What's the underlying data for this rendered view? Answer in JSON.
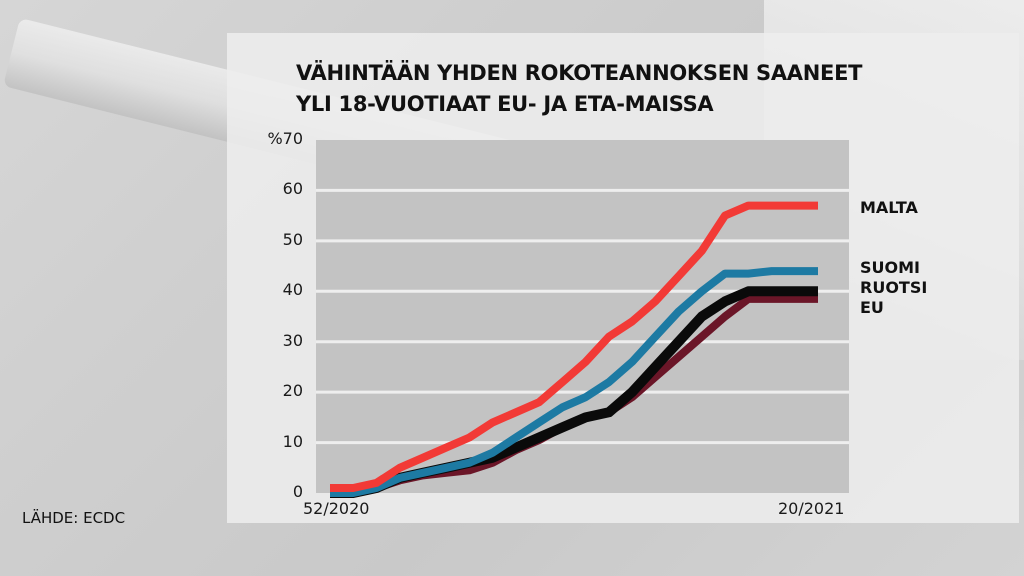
{
  "title": {
    "line1": "VÄHINTÄÄN YHDEN ROKOTEANNOKSEN SAANEET",
    "line2": "YLI 18-VUOTIAAT EU- JA ETA-MAISSA"
  },
  "source": "LÄHDE: ECDC",
  "colors": {
    "malta": "#f23a36",
    "suomi": "#1d7aa3",
    "ruotsi": "#0a0a0a",
    "eu": "#6b1628",
    "plot_bg": "#c3c3c3",
    "gridline": "#eeeeee"
  },
  "chart_data": {
    "type": "line",
    "title": "VÄHINTÄÄN YHDEN ROKOTEANNOKSEN SAANEET YLI 18-VUOTIAAT EU- JA ETA-MAISSA",
    "xlabel": "",
    "ylabel": "%",
    "ylim": [
      0,
      70
    ],
    "yticks": [
      "%70",
      "60",
      "50",
      "40",
      "30",
      "20",
      "10",
      "0"
    ],
    "xtick_labels": [
      "52/2020",
      "20/2021"
    ],
    "grid": true,
    "legend_position": "right, inline at line ends",
    "x": [
      "52/2020",
      "53/2020",
      "1/2021",
      "2/2021",
      "3/2021",
      "4/2021",
      "5/2021",
      "6/2021",
      "7/2021",
      "8/2021",
      "9/2021",
      "10/2021",
      "11/2021",
      "12/2021",
      "13/2021",
      "14/2021",
      "15/2021",
      "16/2021",
      "17/2021",
      "18/2021",
      "19/2021",
      "20/2021"
    ],
    "series": [
      {
        "name": "MALTA",
        "values": [
          1,
          1,
          2,
          5,
          7,
          9,
          11,
          14,
          16,
          18,
          22,
          26,
          31,
          34,
          38,
          43,
          48,
          55,
          57,
          57,
          57,
          57
        ]
      },
      {
        "name": "SUOMI",
        "values": [
          0,
          0,
          1,
          3,
          4,
          5,
          6,
          8,
          11,
          14,
          17,
          19,
          22,
          26,
          31,
          36,
          40,
          43.5,
          43.5,
          44,
          44,
          44
        ]
      },
      {
        "name": "RUOTSI",
        "values": [
          0,
          0,
          1,
          3,
          4,
          5,
          6,
          7,
          9,
          11,
          13,
          15,
          16,
          20,
          25,
          30,
          35,
          38,
          40,
          40,
          40,
          40
        ]
      },
      {
        "name": "EU",
        "values": [
          0,
          0,
          1,
          2.5,
          3.5,
          4,
          4.5,
          6,
          8.5,
          10.5,
          13,
          15,
          16,
          19,
          23,
          27,
          31,
          35,
          38.5,
          38.5,
          38.5,
          38.5
        ]
      }
    ]
  },
  "legend": {
    "malta": "MALTA",
    "suomi": "SUOMI",
    "ruotsi": "RUOTSI",
    "eu": "EU"
  }
}
